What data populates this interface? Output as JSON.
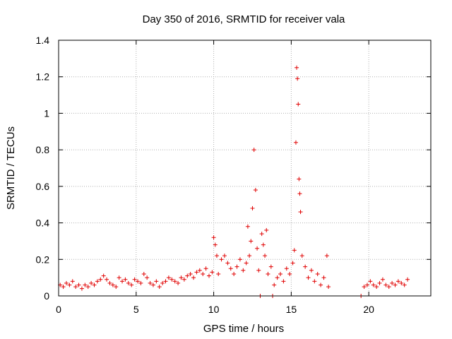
{
  "chart_data": {
    "type": "scatter",
    "title": "Day 350 of 2016, SRMTID for receiver vala",
    "xlabel": "GPS time / hours",
    "ylabel": "SRMTID / TECUs",
    "xlim": [
      0,
      24
    ],
    "ylim": [
      0,
      1.4
    ],
    "xticks": [
      0,
      5,
      10,
      15,
      20
    ],
    "xtick_labels": [
      "0",
      "5",
      "10",
      "15",
      "20"
    ],
    "yticks": [
      0,
      0.2,
      0.4,
      0.6,
      0.8,
      1.0,
      1.2,
      1.4
    ],
    "ytick_labels": [
      "0",
      "0.2",
      "0.4",
      "0.6",
      "0.8",
      "1",
      "1.2",
      "1.4"
    ],
    "grid": true,
    "marker": "+",
    "color": "#e00000",
    "series": [
      {
        "name": "SRMTID",
        "points": [
          [
            0.1,
            0.06
          ],
          [
            0.3,
            0.05
          ],
          [
            0.5,
            0.07
          ],
          [
            0.7,
            0.06
          ],
          [
            0.9,
            0.08
          ],
          [
            1.1,
            0.05
          ],
          [
            1.3,
            0.06
          ],
          [
            1.5,
            0.04
          ],
          [
            1.7,
            0.06
          ],
          [
            1.9,
            0.05
          ],
          [
            2.1,
            0.07
          ],
          [
            2.3,
            0.06
          ],
          [
            2.5,
            0.08
          ],
          [
            2.7,
            0.09
          ],
          [
            2.9,
            0.11
          ],
          [
            3.1,
            0.09
          ],
          [
            3.3,
            0.07
          ],
          [
            3.5,
            0.06
          ],
          [
            3.7,
            0.05
          ],
          [
            3.9,
            0.1
          ],
          [
            4.1,
            0.08
          ],
          [
            4.3,
            0.09
          ],
          [
            4.5,
            0.07
          ],
          [
            4.7,
            0.06
          ],
          [
            4.9,
            0.09
          ],
          [
            5.1,
            0.08
          ],
          [
            5.3,
            0.07
          ],
          [
            5.5,
            0.12
          ],
          [
            5.7,
            0.1
          ],
          [
            5.9,
            0.07
          ],
          [
            6.1,
            0.06
          ],
          [
            6.3,
            0.08
          ],
          [
            6.5,
            0.05
          ],
          [
            6.7,
            0.07
          ],
          [
            6.9,
            0.08
          ],
          [
            7.1,
            0.1
          ],
          [
            7.3,
            0.09
          ],
          [
            7.5,
            0.08
          ],
          [
            7.7,
            0.07
          ],
          [
            7.9,
            0.1
          ],
          [
            8.1,
            0.09
          ],
          [
            8.3,
            0.11
          ],
          [
            8.5,
            0.12
          ],
          [
            8.7,
            0.1
          ],
          [
            8.9,
            0.13
          ],
          [
            9.1,
            0.14
          ],
          [
            9.3,
            0.12
          ],
          [
            9.5,
            0.15
          ],
          [
            9.7,
            0.11
          ],
          [
            9.9,
            0.13
          ],
          [
            10.0,
            0.32
          ],
          [
            10.1,
            0.28
          ],
          [
            10.2,
            0.22
          ],
          [
            10.3,
            0.12
          ],
          [
            10.5,
            0.2
          ],
          [
            10.7,
            0.22
          ],
          [
            10.9,
            0.18
          ],
          [
            11.1,
            0.15
          ],
          [
            11.3,
            0.12
          ],
          [
            11.5,
            0.16
          ],
          [
            11.7,
            0.2
          ],
          [
            11.9,
            0.14
          ],
          [
            12.1,
            0.18
          ],
          [
            12.2,
            0.38
          ],
          [
            12.3,
            0.22
          ],
          [
            12.4,
            0.3
          ],
          [
            12.5,
            0.48
          ],
          [
            12.6,
            0.8
          ],
          [
            12.7,
            0.58
          ],
          [
            12.8,
            0.26
          ],
          [
            12.9,
            0.14
          ],
          [
            13.0,
            0.0
          ],
          [
            13.1,
            0.34
          ],
          [
            13.2,
            0.28
          ],
          [
            13.3,
            0.22
          ],
          [
            13.4,
            0.36
          ],
          [
            13.5,
            0.12
          ],
          [
            13.7,
            0.16
          ],
          [
            13.8,
            0.0
          ],
          [
            13.9,
            0.06
          ],
          [
            14.1,
            0.1
          ],
          [
            14.3,
            0.12
          ],
          [
            14.5,
            0.08
          ],
          [
            14.7,
            0.15
          ],
          [
            14.9,
            0.12
          ],
          [
            15.1,
            0.18
          ],
          [
            15.2,
            0.25
          ],
          [
            15.3,
            0.84
          ],
          [
            15.35,
            1.25
          ],
          [
            15.4,
            1.19
          ],
          [
            15.45,
            1.05
          ],
          [
            15.5,
            0.64
          ],
          [
            15.55,
            0.56
          ],
          [
            15.6,
            0.46
          ],
          [
            15.7,
            0.22
          ],
          [
            15.9,
            0.16
          ],
          [
            16.1,
            0.1
          ],
          [
            16.3,
            0.14
          ],
          [
            16.5,
            0.08
          ],
          [
            16.7,
            0.12
          ],
          [
            16.9,
            0.06
          ],
          [
            17.1,
            0.1
          ],
          [
            17.3,
            0.22
          ],
          [
            17.4,
            0.05
          ],
          [
            19.5,
            0.0
          ],
          [
            19.7,
            0.05
          ],
          [
            19.9,
            0.06
          ],
          [
            20.1,
            0.08
          ],
          [
            20.3,
            0.06
          ],
          [
            20.5,
            0.05
          ],
          [
            20.7,
            0.07
          ],
          [
            20.9,
            0.09
          ],
          [
            21.1,
            0.06
          ],
          [
            21.3,
            0.05
          ],
          [
            21.5,
            0.07
          ],
          [
            21.7,
            0.06
          ],
          [
            21.9,
            0.08
          ],
          [
            22.1,
            0.07
          ],
          [
            22.3,
            0.06
          ],
          [
            22.5,
            0.09
          ]
        ]
      }
    ]
  }
}
